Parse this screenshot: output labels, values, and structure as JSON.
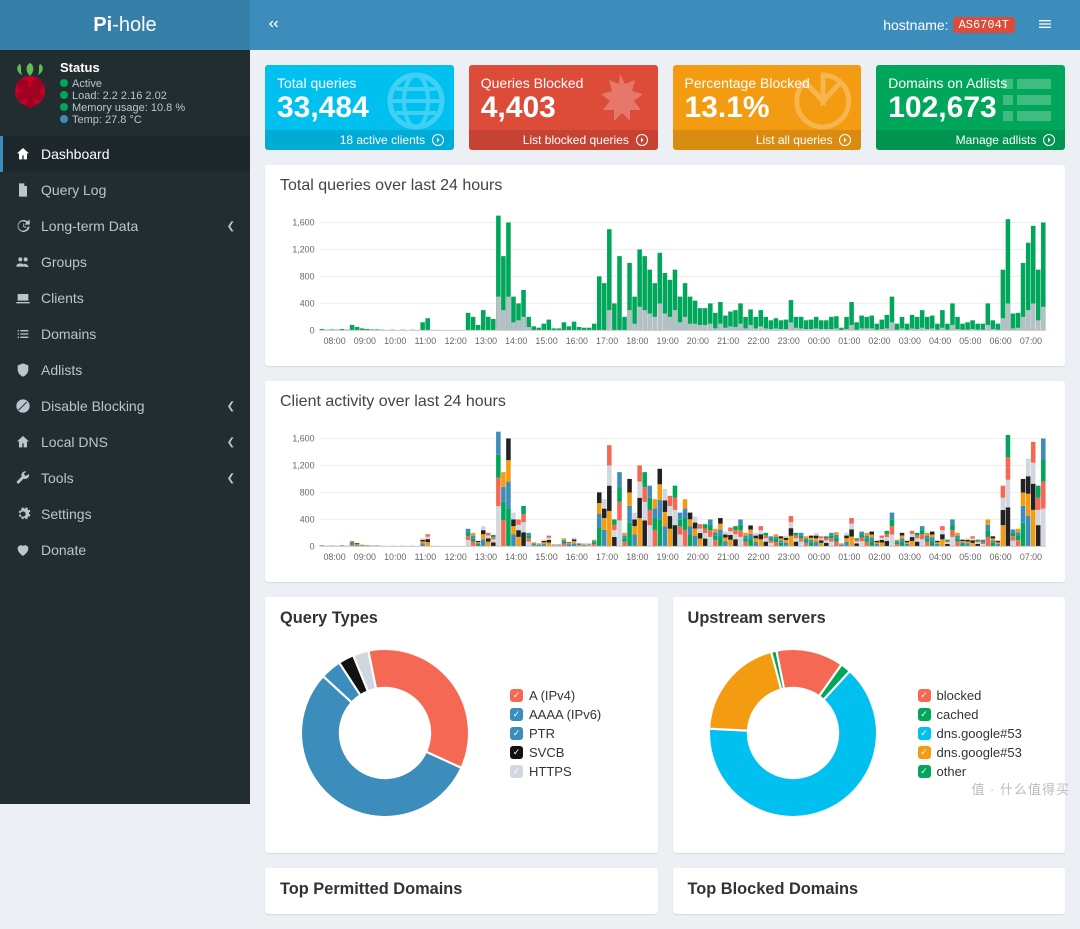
{
  "header": {
    "logo_bold": "Pi",
    "logo_light": "-hole",
    "hostname_label": "hostname:",
    "hostname_value": "AS6704T"
  },
  "status": {
    "title": "Status",
    "active_label": "Active",
    "load_label": "Load: 2.2  2.16  2.02",
    "mem_label": "Memory usage: 10.8 %",
    "temp_label": "Temp: 27.8 °C",
    "colors": {
      "green": "#00a65a",
      "blue": "#3c8dbc"
    }
  },
  "sidebar": {
    "items": [
      {
        "icon": "home",
        "label": "Dashboard",
        "active": true,
        "caret": false
      },
      {
        "icon": "file",
        "label": "Query Log",
        "active": false,
        "caret": false
      },
      {
        "icon": "history",
        "label": "Long-term Data",
        "active": false,
        "caret": true
      },
      {
        "icon": "users",
        "label": "Groups",
        "active": false,
        "caret": false
      },
      {
        "icon": "laptop",
        "label": "Clients",
        "active": false,
        "caret": false
      },
      {
        "icon": "list",
        "label": "Domains",
        "active": false,
        "caret": false
      },
      {
        "icon": "shield",
        "label": "Adlists",
        "active": false,
        "caret": false
      },
      {
        "icon": "ban",
        "label": "Disable Blocking",
        "active": false,
        "caret": true
      },
      {
        "icon": "home",
        "label": "Local DNS",
        "active": false,
        "caret": true
      },
      {
        "icon": "wrench",
        "label": "Tools",
        "active": false,
        "caret": true
      },
      {
        "icon": "gear",
        "label": "Settings",
        "active": false,
        "caret": false
      },
      {
        "icon": "donate",
        "label": "Donate",
        "active": false,
        "caret": false
      }
    ]
  },
  "boxes": [
    {
      "bg": "#00c0ef",
      "label": "Total queries",
      "value": "33,484",
      "footer": "18 active clients",
      "icon": "globe"
    },
    {
      "bg": "#dd4b39",
      "label": "Queries Blocked",
      "value": "4,403",
      "footer": "List blocked queries",
      "icon": "hand"
    },
    {
      "bg": "#f39c12",
      "label": "Percentage Blocked",
      "value": "13.1%",
      "footer": "List all queries",
      "icon": "pie"
    },
    {
      "bg": "#00a65a",
      "label": "Domains on Adlists",
      "value": "102,673",
      "footer": "Manage adlists",
      "icon": "list"
    }
  ],
  "chart1": {
    "title": "Total queries over last 24 hours",
    "ylim": [
      0,
      1800
    ],
    "yticks": [
      0,
      400,
      800,
      1200,
      1600
    ],
    "xlabels": [
      "08:00",
      "09:00",
      "10:00",
      "11:00",
      "12:00",
      "13:00",
      "14:00",
      "15:00",
      "16:00",
      "17:00",
      "18:00",
      "19:00",
      "20:00",
      "21:00",
      "22:00",
      "23:00",
      "00:00",
      "01:00",
      "02:00",
      "03:00",
      "04:00",
      "05:00",
      "06:00",
      "07:00"
    ],
    "bars_per_hour": 6,
    "color_permitted": "#00a65a",
    "color_blocked": "#b5bfc6",
    "data": [
      20,
      10,
      15,
      10,
      20,
      10,
      80,
      50,
      30,
      20,
      15,
      15,
      10,
      5,
      10,
      5,
      10,
      5,
      10,
      5,
      120,
      180,
      8,
      6,
      5,
      5,
      5,
      5,
      5,
      260,
      200,
      80,
      300,
      200,
      170,
      1700,
      1100,
      1600,
      500,
      400,
      600,
      200,
      60,
      40,
      100,
      160,
      30,
      30,
      120,
      60,
      130,
      50,
      40,
      40,
      100,
      800,
      700,
      1500,
      400,
      1100,
      200,
      1000,
      500,
      1200,
      1100,
      900,
      700,
      1150,
      850,
      750,
      900,
      500,
      700,
      500,
      440,
      330,
      330,
      400,
      260,
      420,
      220,
      280,
      300,
      400,
      200,
      310,
      200,
      300,
      200,
      150,
      180,
      150,
      160,
      450,
      200,
      200,
      150,
      160,
      200,
      150,
      150,
      200,
      210,
      40,
      200,
      420,
      120,
      220,
      200,
      220,
      100,
      160,
      230,
      500,
      100,
      200,
      100,
      230,
      200,
      300,
      200,
      220,
      100,
      300,
      100,
      400,
      200,
      100,
      120,
      150,
      100,
      100,
      400,
      150,
      100,
      900,
      1650,
      250,
      260,
      1000,
      1300,
      1550,
      900,
      1600
    ],
    "blocked": [
      0,
      0,
      0,
      0,
      0,
      0,
      0,
      0,
      0,
      0,
      0,
      0,
      0,
      0,
      0,
      0,
      0,
      0,
      0,
      0,
      0,
      0,
      0,
      0,
      0,
      0,
      0,
      0,
      0,
      0,
      0,
      0,
      0,
      0,
      0,
      500,
      300,
      500,
      120,
      150,
      200,
      50,
      0,
      0,
      0,
      0,
      0,
      0,
      0,
      0,
      0,
      0,
      0,
      0,
      0,
      0,
      0,
      300,
      0,
      0,
      0,
      300,
      100,
      350,
      300,
      250,
      200,
      400,
      250,
      200,
      300,
      120,
      200,
      100,
      100,
      80,
      80,
      100,
      30,
      100,
      40,
      60,
      50,
      100,
      30,
      80,
      30,
      60,
      30,
      20,
      30,
      20,
      20,
      120,
      40,
      30,
      20,
      20,
      30,
      20,
      20,
      20,
      30,
      0,
      20,
      80,
      10,
      30,
      30,
      30,
      10,
      20,
      30,
      120,
      10,
      30,
      10,
      30,
      20,
      40,
      20,
      30,
      10,
      40,
      10,
      80,
      20,
      10,
      10,
      20,
      10,
      10,
      80,
      20,
      10,
      180,
      400,
      30,
      40,
      200,
      300,
      400,
      150,
      350
    ]
  },
  "chart2": {
    "title": "Client activity over last 24 hours",
    "ylim": [
      0,
      1800
    ],
    "yticks": [
      0,
      400,
      800,
      1200,
      1600
    ],
    "xlabels": [
      "08:00",
      "09:00",
      "10:00",
      "11:00",
      "12:00",
      "13:00",
      "14:00",
      "15:00",
      "16:00",
      "17:00",
      "18:00",
      "19:00",
      "20:00",
      "21:00",
      "22:00",
      "23:00",
      "00:00",
      "01:00",
      "02:00",
      "03:00",
      "04:00",
      "05:00",
      "06:00",
      "07:00"
    ],
    "colors": [
      "#f56954",
      "#00a65a",
      "#3c8dbc",
      "#f39c12",
      "#222222",
      "#d2d6de"
    ],
    "data": [
      20,
      10,
      15,
      10,
      20,
      10,
      80,
      50,
      30,
      20,
      15,
      15,
      10,
      5,
      10,
      5,
      10,
      5,
      10,
      5,
      120,
      180,
      8,
      6,
      5,
      5,
      5,
      5,
      5,
      260,
      200,
      80,
      300,
      200,
      170,
      1700,
      1100,
      1600,
      500,
      400,
      600,
      200,
      60,
      40,
      100,
      160,
      30,
      30,
      120,
      60,
      130,
      50,
      40,
      40,
      100,
      800,
      700,
      1500,
      400,
      1100,
      200,
      1000,
      500,
      1200,
      1100,
      900,
      700,
      1150,
      850,
      750,
      900,
      500,
      700,
      500,
      440,
      330,
      330,
      400,
      260,
      420,
      220,
      280,
      300,
      400,
      200,
      310,
      200,
      300,
      200,
      150,
      180,
      150,
      160,
      450,
      200,
      200,
      150,
      160,
      200,
      150,
      150,
      200,
      210,
      40,
      200,
      420,
      120,
      220,
      200,
      220,
      100,
      160,
      230,
      500,
      100,
      200,
      100,
      230,
      200,
      300,
      200,
      220,
      100,
      300,
      100,
      400,
      200,
      100,
      120,
      150,
      100,
      100,
      400,
      150,
      100,
      900,
      1650,
      250,
      260,
      1000,
      1300,
      1550,
      900,
      1600
    ]
  },
  "pie1": {
    "title": "Query Types",
    "slices": [
      {
        "label": "A (IPv4)",
        "color": "#f56954",
        "pct": 35
      },
      {
        "label": "AAAA (IPv6)",
        "color": "#3c8dbc",
        "pct": 55
      },
      {
        "label": "PTR",
        "color": "#3c8dbc",
        "pct": 4,
        "dark": true
      },
      {
        "label": "SVCB",
        "color": "#111111",
        "pct": 3
      },
      {
        "label": "HTTPS",
        "color": "#d2d6de",
        "pct": 3
      }
    ]
  },
  "pie2": {
    "title": "Upstream servers",
    "slices": [
      {
        "label": "blocked",
        "color": "#f56954",
        "pct": 13
      },
      {
        "label": "cached",
        "color": "#00a65a",
        "pct": 2
      },
      {
        "label": "dns.google#53",
        "color": "#00c0ef",
        "pct": 64
      },
      {
        "label": "dns.google#53",
        "color": "#f39c12",
        "pct": 20
      },
      {
        "label": "other",
        "color": "#00a65a",
        "pct": 1
      }
    ]
  },
  "bottom": {
    "left": "Top Permitted Domains",
    "right": "Top Blocked Domains"
  }
}
